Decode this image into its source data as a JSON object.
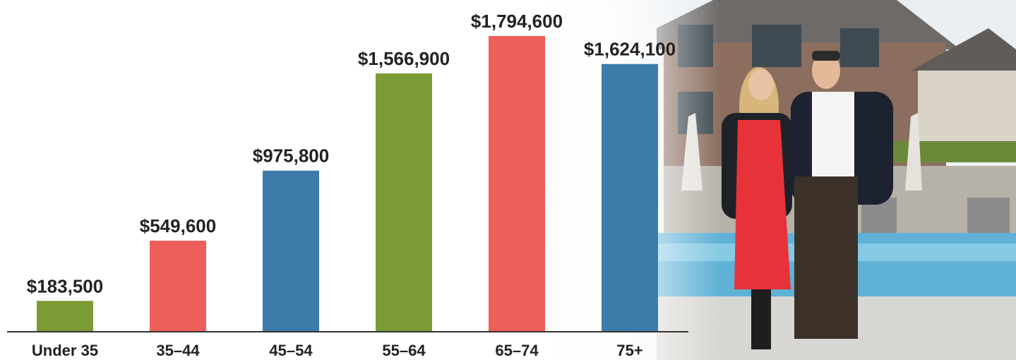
{
  "chart_data": {
    "type": "bar",
    "categories": [
      "Under 35",
      "35–44",
      "45–54",
      "55–64",
      "65–74",
      "75+"
    ],
    "values": [
      183500,
      549600,
      975800,
      1566900,
      1794600,
      1624100
    ],
    "value_labels": [
      "$183,500",
      "$549,600",
      "$975,800",
      "$1,566,900",
      "$1,794,600",
      "$1,624,100"
    ],
    "colors": [
      "#7b9b35",
      "#ee5f5a",
      "#3d7bab",
      "#7b9b35",
      "#ee5f5a",
      "#3d7bab"
    ]
  }
}
